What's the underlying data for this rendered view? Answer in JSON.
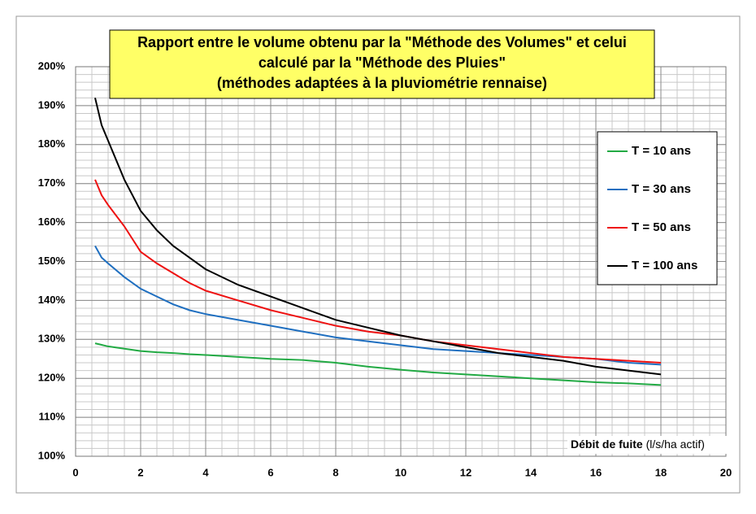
{
  "chart_data": {
    "type": "line",
    "title": [
      "Rapport entre le volume obtenu par la \"Méthode des Volumes\" et celui",
      "calculé par la \"Méthode des Pluies\"",
      "(méthodes adaptées à la pluviométrie rennaise)"
    ],
    "xlabel": "Débit de fuite",
    "xlabel_unit": "(l/s/ha actif)",
    "x": [
      0.6,
      0.8,
      1,
      1.5,
      2,
      2.5,
      3,
      3.5,
      4,
      5,
      6,
      7,
      8,
      9,
      10,
      11,
      12,
      13,
      14,
      15,
      16,
      17,
      18
    ],
    "series": [
      {
        "name": "T = 10 ans",
        "color": "#22aa44",
        "values": [
          129,
          128.6,
          128.2,
          127.6,
          127,
          126.7,
          126.5,
          126.2,
          126,
          125.5,
          125,
          124.7,
          124,
          123,
          122.2,
          121.5,
          121,
          120.5,
          120,
          119.5,
          119,
          118.7,
          118.3
        ]
      },
      {
        "name": "T = 30 ans",
        "color": "#1f6fc0",
        "values": [
          154,
          151,
          149.5,
          146,
          143,
          141,
          139,
          137.5,
          136.5,
          135,
          133.5,
          132,
          130.5,
          129.5,
          128.5,
          127.5,
          127,
          126.5,
          126,
          125.5,
          125,
          124,
          123.5
        ]
      },
      {
        "name": "T = 50 ans",
        "color": "#ee1111",
        "values": [
          171,
          167,
          164.5,
          159,
          152.5,
          149.5,
          147,
          144.5,
          142.5,
          140,
          137.5,
          135.5,
          133.5,
          132,
          131,
          129.5,
          128.5,
          127.5,
          126.5,
          125.5,
          125,
          124.5,
          124
        ]
      },
      {
        "name": "T = 100 ans",
        "color": "#000000",
        "values": [
          192,
          185,
          181,
          171,
          163,
          158,
          154,
          151,
          148,
          144,
          141,
          138,
          135,
          133,
          131,
          129.5,
          128,
          126.5,
          125.5,
          124.5,
          123,
          122,
          121
        ]
      }
    ],
    "xlim": [
      0,
      20
    ],
    "xticks": [
      0,
      2,
      4,
      6,
      8,
      10,
      12,
      14,
      16,
      18,
      20
    ],
    "ylim": [
      100,
      200
    ],
    "yticks": [
      {
        "value": 100,
        "label": "100%"
      },
      {
        "value": 110,
        "label": "110%"
      },
      {
        "value": 120,
        "label": "120%"
      },
      {
        "value": 130,
        "label": "130%"
      },
      {
        "value": 140,
        "label": "140%"
      },
      {
        "value": 150,
        "label": "150%"
      },
      {
        "value": 160,
        "label": "160%"
      },
      {
        "value": 170,
        "label": "170%"
      },
      {
        "value": 180,
        "label": "180%"
      },
      {
        "value": 190,
        "label": "190%"
      },
      {
        "value": 200,
        "label": "200%"
      }
    ],
    "grid": true,
    "minor_xstep": 0.5,
    "minor_ystep": 2,
    "legend": "right"
  }
}
